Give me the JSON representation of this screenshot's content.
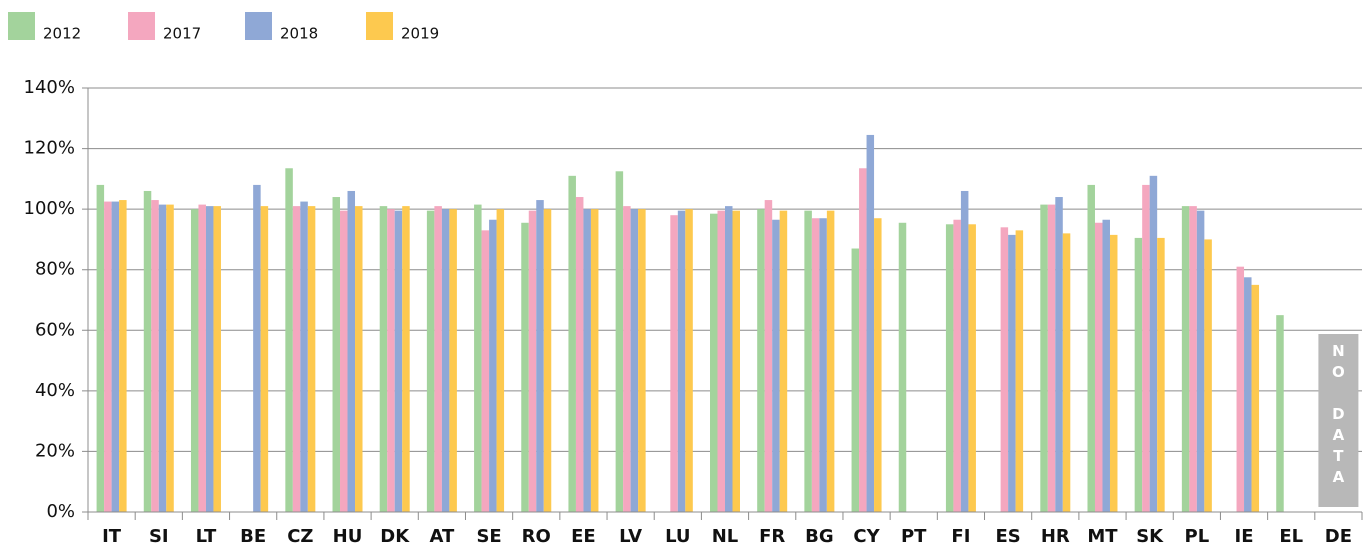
{
  "chart_data": {
    "type": "bar",
    "categories": [
      "IT",
      "SI",
      "LT",
      "BE",
      "CZ",
      "HU",
      "DK",
      "AT",
      "SE",
      "RO",
      "EE",
      "LV",
      "LU",
      "NL",
      "FR",
      "BG",
      "CY",
      "PT",
      "FI",
      "ES",
      "HR",
      "MT",
      "SK",
      "PL",
      "IE",
      "EL",
      "DE"
    ],
    "series": [
      {
        "name": "2012",
        "color": "#a3d39c",
        "values": [
          108,
          106,
          100,
          null,
          113.5,
          104,
          101,
          99.5,
          101.5,
          95.5,
          111,
          112.5,
          null,
          98.5,
          100,
          99.5,
          87,
          95.5,
          95,
          null,
          101.5,
          108,
          90.5,
          101,
          null,
          65,
          null
        ]
      },
      {
        "name": "2017",
        "color": "#f4a7bf",
        "values": [
          102.5,
          103,
          101.5,
          null,
          101,
          99.5,
          100,
          101,
          93,
          99.5,
          104,
          101,
          98,
          99.5,
          103,
          97,
          113.5,
          null,
          96.5,
          94,
          101.5,
          95.5,
          108,
          101,
          81,
          null,
          null
        ]
      },
      {
        "name": "2018",
        "color": "#8fa8d6",
        "values": [
          102.5,
          101.5,
          101,
          108,
          102.5,
          106,
          99.5,
          100,
          96.5,
          103,
          100,
          100,
          99.5,
          101,
          96.5,
          97,
          124.5,
          null,
          106,
          91.5,
          104,
          96.5,
          111,
          99.5,
          77.5,
          null,
          null
        ]
      },
      {
        "name": "2019",
        "color": "#fdc94f",
        "values": [
          103,
          101.5,
          101,
          101,
          101,
          101,
          101,
          100,
          100,
          100,
          100,
          100,
          100,
          99.5,
          99.5,
          99.5,
          97,
          null,
          95,
          93,
          92,
          91.5,
          90.5,
          90,
          75,
          null,
          null
        ]
      }
    ],
    "ylim": [
      0,
      140
    ],
    "yticks": [
      {
        "value": 0,
        "label": "0%"
      },
      {
        "value": 20,
        "label": "20%"
      },
      {
        "value": 40,
        "label": "40%"
      },
      {
        "value": 60,
        "label": "60%"
      },
      {
        "value": 80,
        "label": "80%"
      },
      {
        "value": 100,
        "label": "100%"
      },
      {
        "value": 120,
        "label": "120%"
      },
      {
        "value": 140,
        "label": "140%"
      }
    ],
    "grid": true,
    "legend": "top-left",
    "annotation": "NO DATA"
  }
}
